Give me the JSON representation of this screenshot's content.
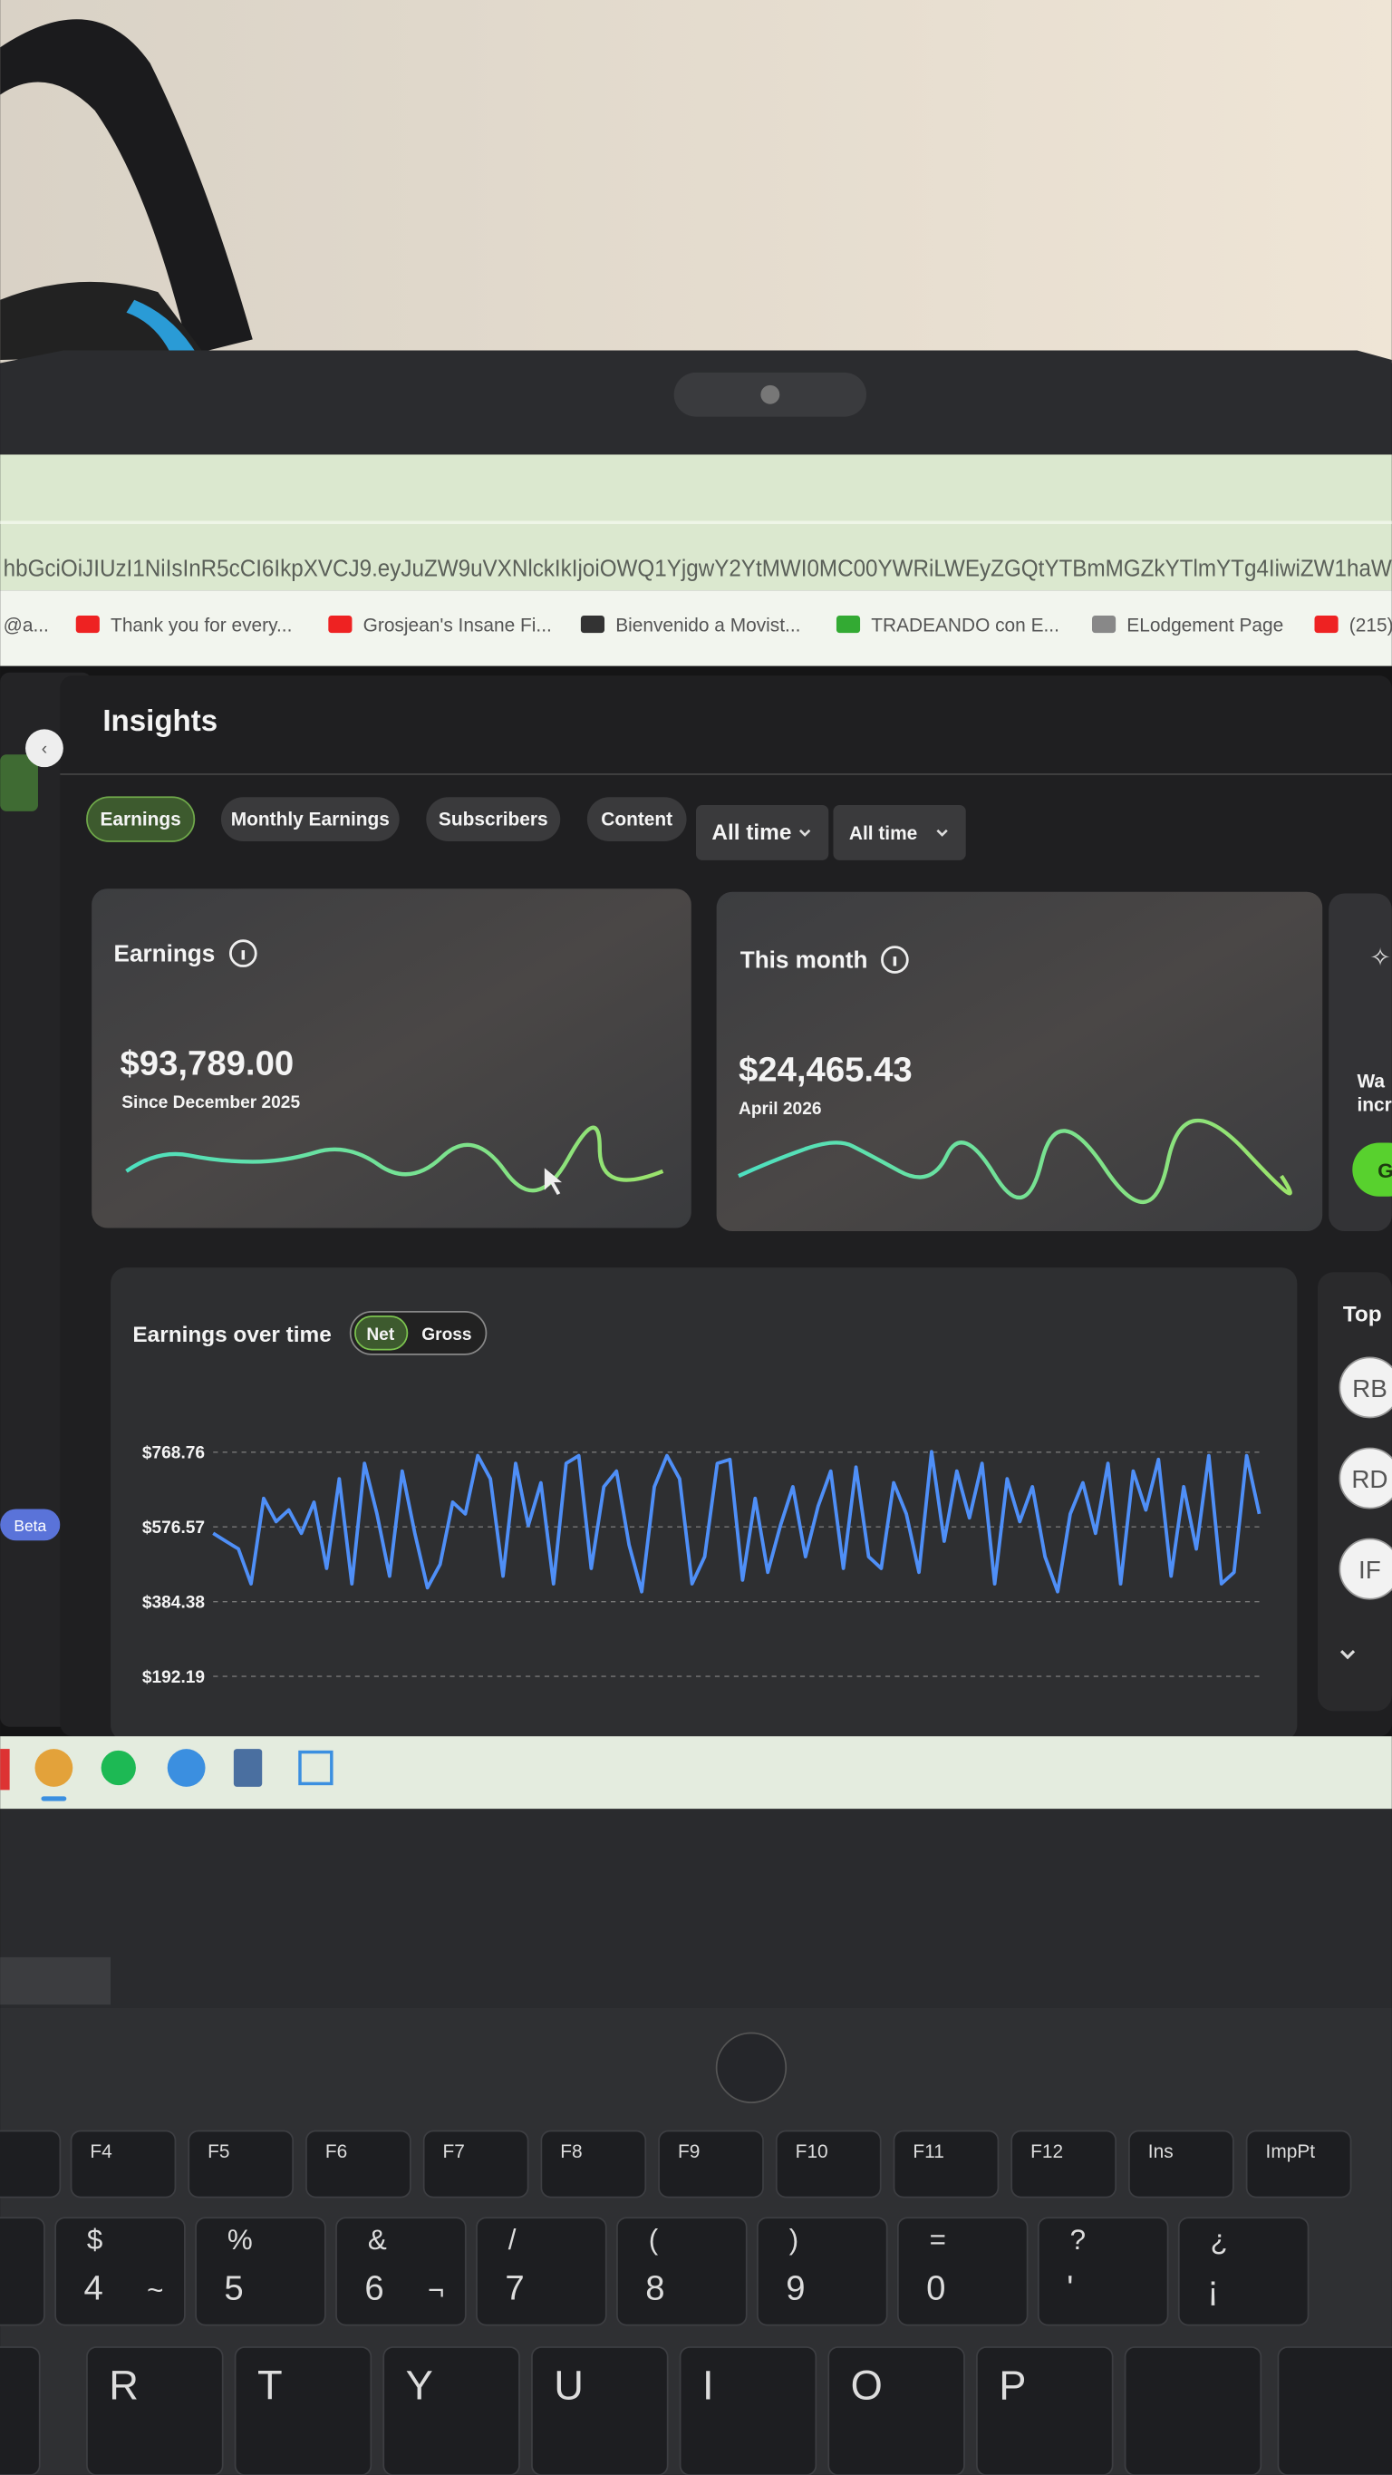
{
  "browser": {
    "url": "hbGciOiJIUzI1NiIsInR5cCI6IkpXVCJ9.eyJuZW9uVXNlckIkIjoiOWQ1YjgwY2YtMWI0MC00YWRiLWEyZGQtYTBmMGZkYTlmYTg4IiwiZW1haW",
    "bookmarks": [
      "@a...",
      "Thank you for every...",
      "Grosjean's Insane Fi...",
      "Bienvenido a Movist...",
      "TRADEANDO con E...",
      "ELodgement Page",
      "(215)"
    ]
  },
  "sidebar": {
    "badge": "Beta"
  },
  "header": {
    "title": "Insights"
  },
  "tabs": [
    "Earnings",
    "Monthly Earnings",
    "Subscribers",
    "Content"
  ],
  "filters": [
    "All time",
    "All time"
  ],
  "cards": [
    {
      "title": "Earnings",
      "value": "$93,789.00",
      "caption": "Since December 2025"
    },
    {
      "title": "This month",
      "value": "$24,465.43",
      "caption": "April 2026"
    }
  ],
  "promo": {
    "lines": [
      "Wa",
      "incr"
    ],
    "button": "G"
  },
  "chart_data": {
    "type": "line",
    "title": "Earnings over time",
    "toggle": [
      "Net",
      "Gross"
    ],
    "color": "#4f8ff7",
    "values": [
      560,
      540,
      520,
      430,
      650,
      590,
      620,
      560,
      640,
      470,
      700,
      430,
      740,
      610,
      450,
      720,
      560,
      420,
      480,
      640,
      610,
      760,
      700,
      450,
      740,
      580,
      690,
      430,
      740,
      760,
      470,
      680,
      720,
      530,
      410,
      680,
      760,
      700,
      430,
      500,
      740,
      750,
      440,
      650,
      460,
      580,
      680,
      500,
      630,
      720,
      470,
      730,
      500,
      470,
      690,
      610,
      460,
      770,
      540,
      720,
      600,
      740,
      430,
      700,
      590,
      680,
      500,
      410,
      610,
      690,
      560,
      740,
      430,
      720,
      620,
      750,
      450,
      680,
      520,
      760,
      430,
      460,
      760,
      610
    ],
    "ylim": [
      60,
      800
    ],
    "yticks": [
      {
        "value": 192.19,
        "label": "$192.19"
      },
      {
        "value": 384.38,
        "label": "$384.38"
      },
      {
        "value": 576.57,
        "label": "$576.57"
      },
      {
        "value": 768.76,
        "label": "$768.76"
      }
    ],
    "grid": true
  },
  "top": {
    "title": "Top",
    "avatars": [
      "RB",
      "RD",
      "IF"
    ]
  },
  "keyboard": {
    "function_row": [
      "F4",
      "F5",
      "F6",
      "F7",
      "F8",
      "F9",
      "F10",
      "F11",
      "F12",
      "Ins",
      "ImpPt"
    ],
    "number_row": [
      [
        "$",
        "4",
        "~"
      ],
      [
        "%",
        "5"
      ],
      [
        "&",
        "6",
        "¬"
      ],
      [
        "/",
        "7"
      ],
      [
        "(",
        "8"
      ],
      [
        ")",
        "9"
      ],
      [
        "=",
        "0"
      ],
      [
        "?",
        "'"
      ],
      [
        "¿",
        "¡"
      ]
    ],
    "letter_row": [
      "R",
      "T",
      "Y",
      "U",
      "I",
      "O",
      "P"
    ]
  }
}
